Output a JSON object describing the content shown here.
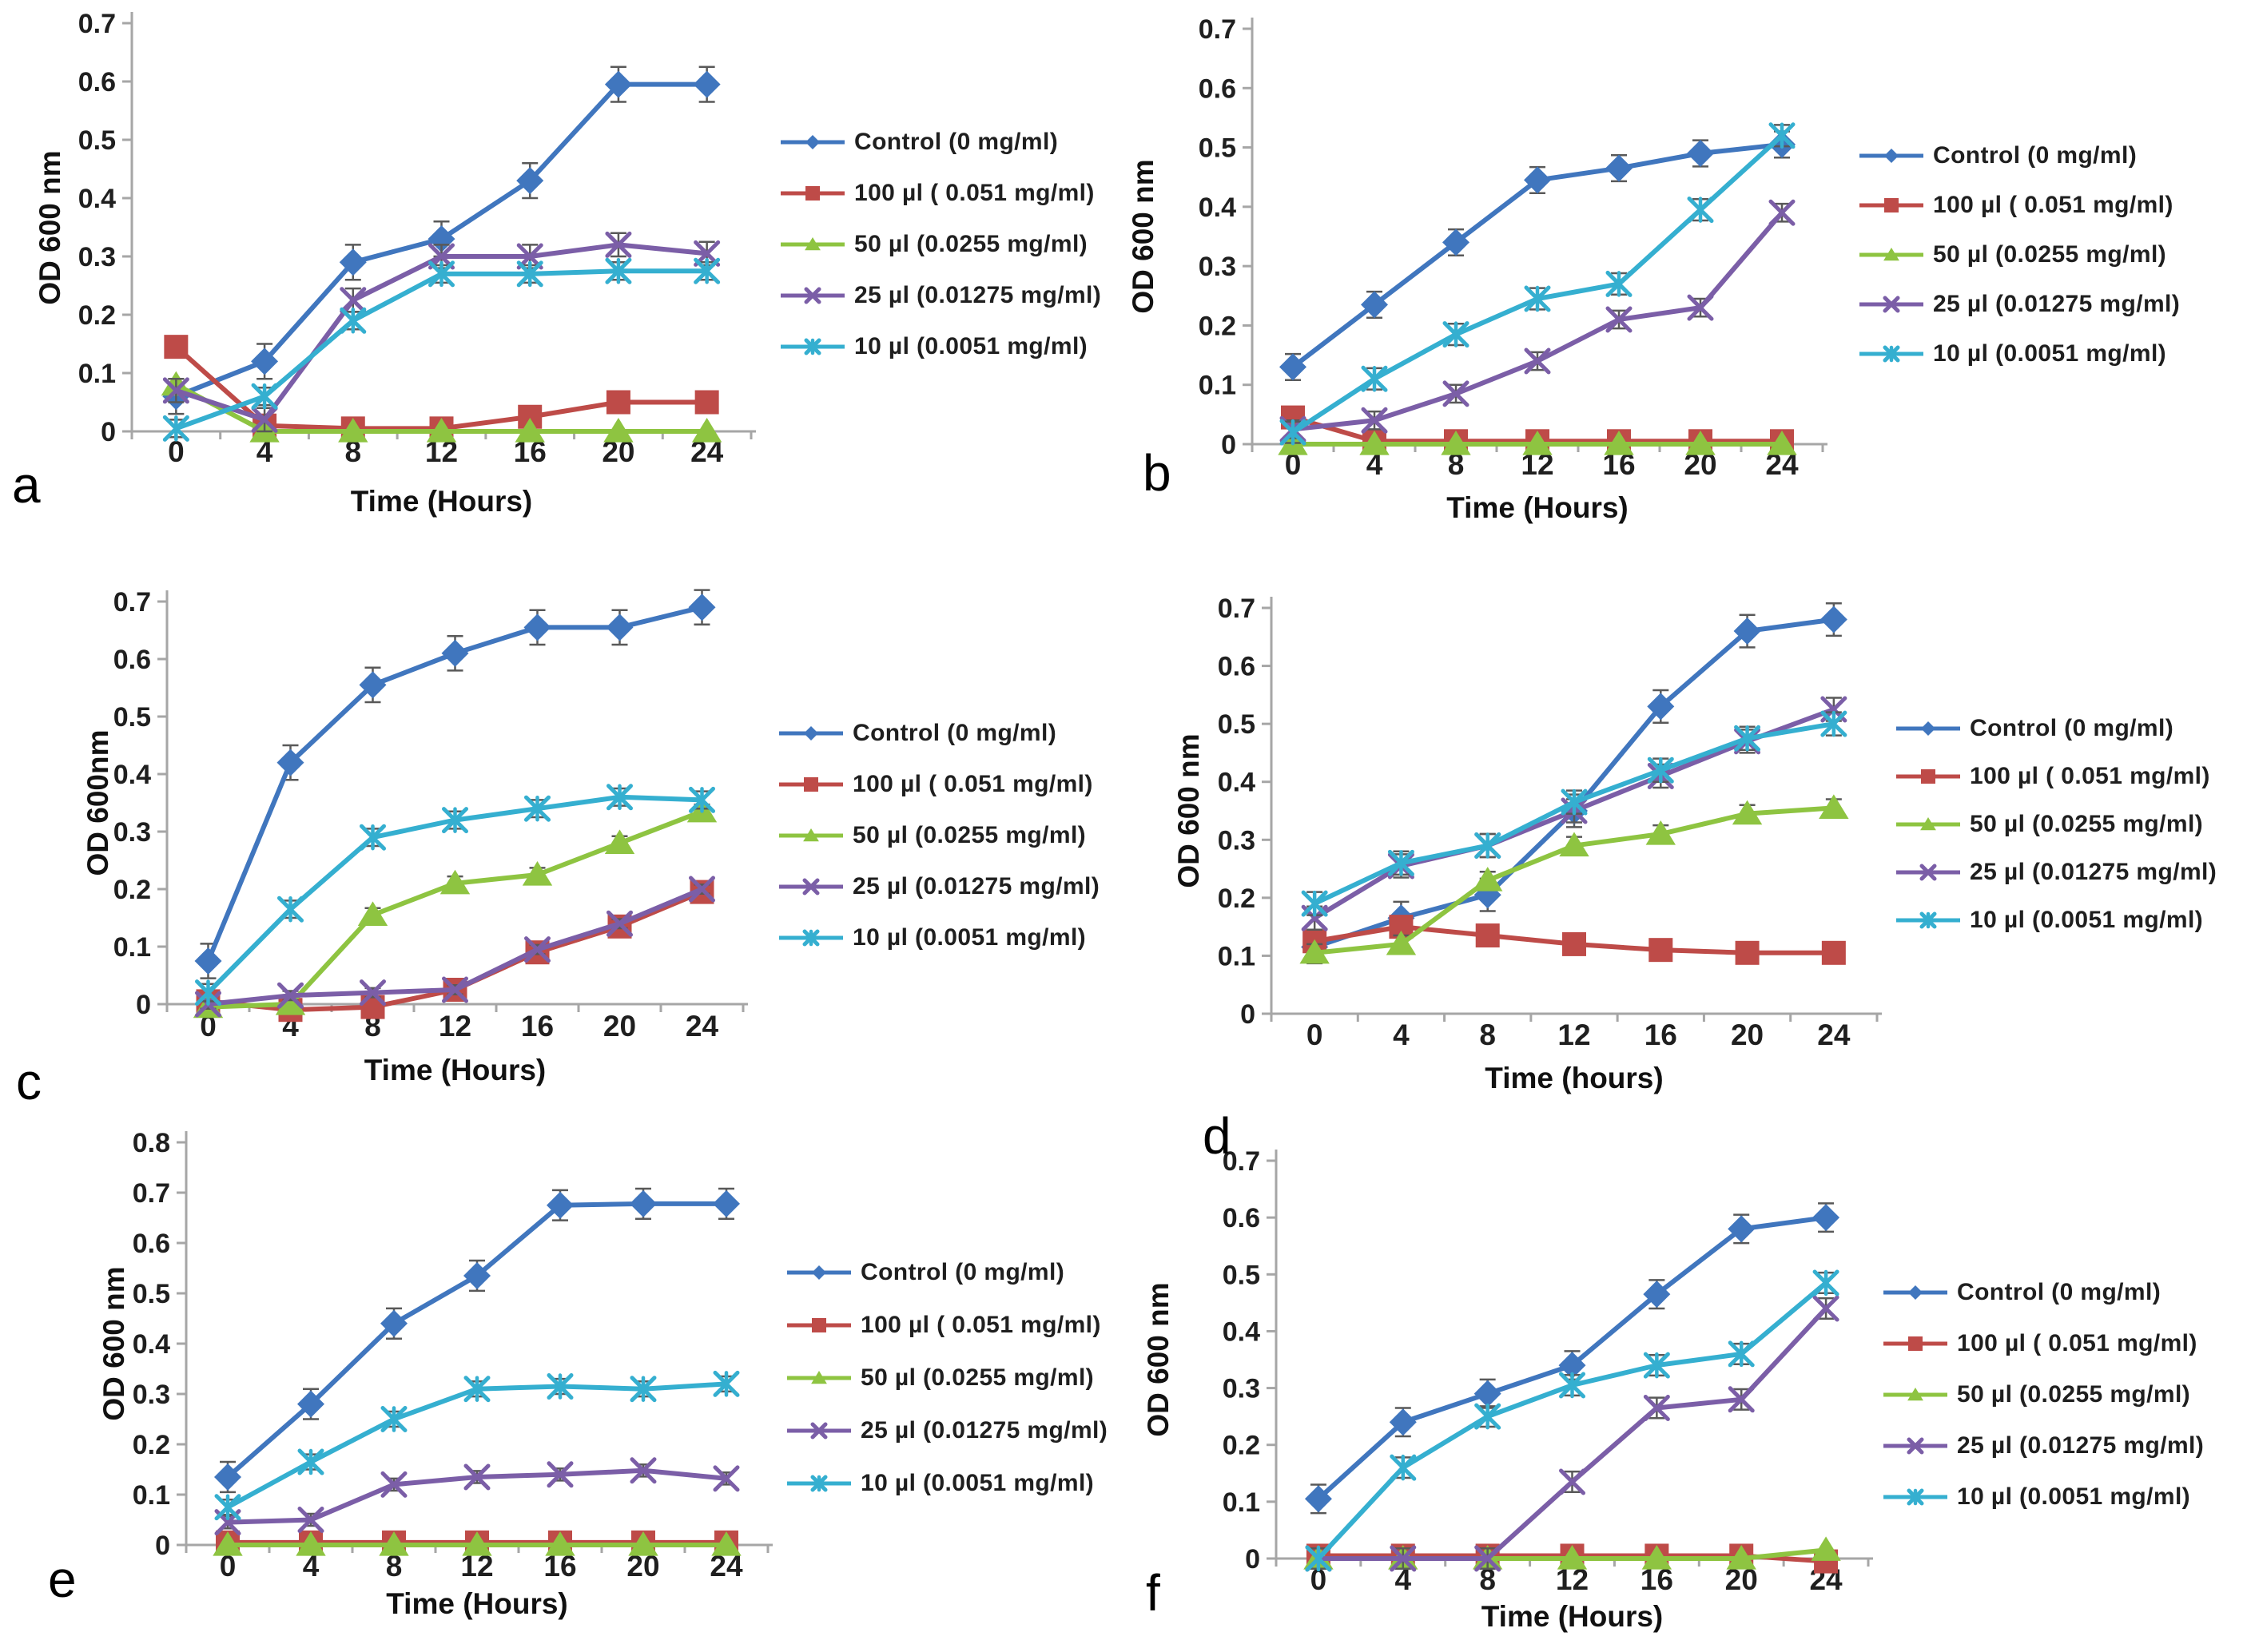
{
  "colors": {
    "axis": "#A6A6A6",
    "error_bar": "#595959",
    "text": "#1F1F1F",
    "background": "#FFFFFF"
  },
  "series_meta": [
    {
      "key": "control",
      "label": "Control (0 mg/ml)",
      "color": "#4076BE",
      "marker": "diamond"
    },
    {
      "key": "v100",
      "label": "100 µl ( 0.051 mg/ml)",
      "color": "#BE4B48",
      "marker": "square"
    },
    {
      "key": "v50",
      "label": "50 µl (0.0255 mg/ml)",
      "color": "#8EC441",
      "marker": "triangle"
    },
    {
      "key": "v25",
      "label": "25 µl (0.01275 mg/ml)",
      "color": "#7B5EA7",
      "marker": "x"
    },
    {
      "key": "v10",
      "label": "10 µl (0.0051 mg/ml)",
      "color": "#35AFD0",
      "marker": "asterisk"
    }
  ],
  "chart_data": [
    {
      "id": "a",
      "panel_label": "a",
      "type": "line",
      "x": [
        0,
        4,
        8,
        12,
        16,
        20,
        24
      ],
      "xlabel": "Time (Hours)",
      "ylabel": "OD 600 nm",
      "ylim": [
        0,
        0.7
      ],
      "ytick_step": 0.1,
      "legend_position": "right",
      "series": [
        {
          "name": "Control (0 mg/ml)",
          "values": [
            0.06,
            0.12,
            0.29,
            0.33,
            0.43,
            0.595,
            0.595
          ],
          "err": 0.03
        },
        {
          "name": "100 µl ( 0.051 mg/ml)",
          "values": [
            0.145,
            0.01,
            0.005,
            0.005,
            0.025,
            0.05,
            0.05
          ],
          "err": 0
        },
        {
          "name": "50 µl (0.0255 mg/ml)",
          "values": [
            0.08,
            0,
            0,
            0,
            0,
            0,
            0
          ],
          "err": 0
        },
        {
          "name": "25 µl (0.01275 mg/ml)",
          "values": [
            0.07,
            0.02,
            0.225,
            0.3,
            0.3,
            0.32,
            0.305
          ],
          "err": 0.02
        },
        {
          "name": "10 µl (0.0051 mg/ml)",
          "values": [
            0.005,
            0.06,
            0.19,
            0.27,
            0.27,
            0.275,
            0.275
          ],
          "err": 0.015
        }
      ]
    },
    {
      "id": "b",
      "panel_label": "b",
      "type": "line",
      "x": [
        0,
        4,
        8,
        12,
        16,
        20,
        24
      ],
      "xlabel": "Time  (Hours)",
      "ylabel": "OD 600 nm",
      "ylim": [
        0,
        0.7
      ],
      "ytick_step": 0.1,
      "legend_position": "right",
      "series": [
        {
          "name": "Control (0 mg/ml)",
          "values": [
            0.13,
            0.235,
            0.34,
            0.445,
            0.465,
            0.49,
            0.505
          ],
          "err": 0.022
        },
        {
          "name": "100 µl ( 0.051 mg/ml)",
          "values": [
            0.045,
            0.005,
            0.005,
            0.005,
            0.005,
            0.005,
            0.005
          ],
          "err": 0
        },
        {
          "name": "50 µl (0.0255 mg/ml)",
          "values": [
            0,
            0,
            0,
            0,
            0,
            0,
            0
          ],
          "err": 0
        },
        {
          "name": "25 µl (0.01275 mg/ml)",
          "values": [
            0.025,
            0.04,
            0.085,
            0.14,
            0.21,
            0.23,
            0.39
          ],
          "err": 0.015
        },
        {
          "name": "10 µl (0.0051 mg/ml)",
          "values": [
            0.02,
            0.11,
            0.185,
            0.245,
            0.27,
            0.395,
            0.52
          ],
          "err": 0.018
        }
      ]
    },
    {
      "id": "c",
      "panel_label": "c",
      "type": "line",
      "x": [
        0,
        4,
        8,
        12,
        16,
        20,
        24
      ],
      "xlabel": "Time (Hours)",
      "ylabel": "OD 600nm",
      "ylim": [
        0,
        0.7
      ],
      "ytick_step": 0.1,
      "legend_position": "right",
      "series": [
        {
          "name": "Control (0 mg/ml)",
          "values": [
            0.075,
            0.42,
            0.555,
            0.61,
            0.655,
            0.655,
            0.69
          ],
          "err": 0.03
        },
        {
          "name": "100 µl ( 0.051 mg/ml)",
          "values": [
            0.005,
            -0.01,
            -0.005,
            0.025,
            0.09,
            0.135,
            0.195
          ],
          "err": 0
        },
        {
          "name": "50 µl (0.0255 mg/ml)",
          "values": [
            -0.005,
            0,
            0.155,
            0.21,
            0.225,
            0.28,
            0.335
          ],
          "err": 0.012
        },
        {
          "name": "25 µl (0.01275 mg/ml)",
          "values": [
            0,
            0.015,
            0.02,
            0.025,
            0.095,
            0.14,
            0.2
          ],
          "err": 0.008
        },
        {
          "name": "10 µl (0.0051 mg/ml)",
          "values": [
            0.02,
            0.165,
            0.29,
            0.32,
            0.34,
            0.36,
            0.355
          ],
          "err": 0.015
        }
      ]
    },
    {
      "id": "d",
      "panel_label": "d",
      "type": "line",
      "x": [
        0,
        4,
        8,
        12,
        16,
        20,
        24
      ],
      "xlabel": "Time (hours)",
      "ylabel": "OD 600 nm",
      "ylim": [
        0,
        0.7
      ],
      "ytick_step": 0.1,
      "legend_position": "right",
      "series": [
        {
          "name": "Control (0 mg/ml)",
          "values": [
            0.115,
            0.165,
            0.205,
            0.35,
            0.53,
            0.66,
            0.68
          ],
          "err": 0.028
        },
        {
          "name": "100 µl ( 0.051 mg/ml)",
          "values": [
            0.125,
            0.15,
            0.135,
            0.12,
            0.11,
            0.105,
            0.105
          ],
          "err": 0.008
        },
        {
          "name": "50 µl (0.0255 mg/ml)",
          "values": [
            0.105,
            0.12,
            0.23,
            0.29,
            0.31,
            0.345,
            0.355
          ],
          "err": 0.015
        },
        {
          "name": "25 µl (0.01275 mg/ml)",
          "values": [
            0.165,
            0.255,
            0.29,
            0.35,
            0.41,
            0.47,
            0.525
          ],
          "err": 0.02
        },
        {
          "name": "10 µl (0.0051 mg/ml)",
          "values": [
            0.19,
            0.26,
            0.29,
            0.365,
            0.42,
            0.475,
            0.5
          ],
          "err": 0.02
        }
      ]
    },
    {
      "id": "e",
      "panel_label": "e",
      "type": "line",
      "x": [
        0,
        4,
        8,
        12,
        16,
        20,
        24
      ],
      "xlabel": "Time (Hours)",
      "ylabel": "OD 600 nm",
      "ylim": [
        0,
        0.8
      ],
      "ytick_step": 0.1,
      "legend_position": "right",
      "series": [
        {
          "name": "Control (0 mg/ml)",
          "values": [
            0.135,
            0.28,
            0.44,
            0.535,
            0.675,
            0.678,
            0.678
          ],
          "err": 0.03
        },
        {
          "name": "100 µl ( 0.051 mg/ml)",
          "values": [
            0.005,
            0.005,
            0.005,
            0.005,
            0.005,
            0.005,
            0.005
          ],
          "err": 0
        },
        {
          "name": "50 µl (0.0255 mg/ml)",
          "values": [
            0,
            0,
            0,
            0,
            0,
            0,
            0
          ],
          "err": 0
        },
        {
          "name": "25 µl (0.01275 mg/ml)",
          "values": [
            0.045,
            0.05,
            0.12,
            0.135,
            0.14,
            0.148,
            0.132
          ],
          "err": 0.012
        },
        {
          "name": "10 µl (0.0051 mg/ml)",
          "values": [
            0.075,
            0.165,
            0.25,
            0.31,
            0.315,
            0.31,
            0.32
          ],
          "err": 0.015
        }
      ]
    },
    {
      "id": "f",
      "panel_label": "f",
      "type": "line",
      "x": [
        0,
        4,
        8,
        12,
        16,
        20,
        24
      ],
      "xlabel": "Time  (Hours)",
      "ylabel": "OD 600 nm",
      "ylim": [
        0,
        0.7
      ],
      "ytick_step": 0.1,
      "legend_position": "right",
      "series": [
        {
          "name": "Control (0 mg/ml)",
          "values": [
            0.105,
            0.24,
            0.29,
            0.34,
            0.465,
            0.58,
            0.6
          ],
          "err": 0.025
        },
        {
          "name": "100 µl ( 0.051 mg/ml)",
          "values": [
            0.005,
            0.005,
            0.005,
            0.005,
            0.005,
            0.005,
            -0.005
          ],
          "err": 0
        },
        {
          "name": "50 µl (0.0255 mg/ml)",
          "values": [
            0,
            0,
            0,
            0,
            0,
            0,
            0.015
          ],
          "err": 0
        },
        {
          "name": "25 µl (0.01275 mg/ml)",
          "values": [
            0,
            0,
            0,
            0.135,
            0.265,
            0.28,
            0.44
          ],
          "err": 0.018
        },
        {
          "name": "10 µl (0.0051 mg/ml)",
          "values": [
            0,
            0.16,
            0.25,
            0.305,
            0.34,
            0.36,
            0.485
          ],
          "err": 0.018
        }
      ]
    }
  ]
}
